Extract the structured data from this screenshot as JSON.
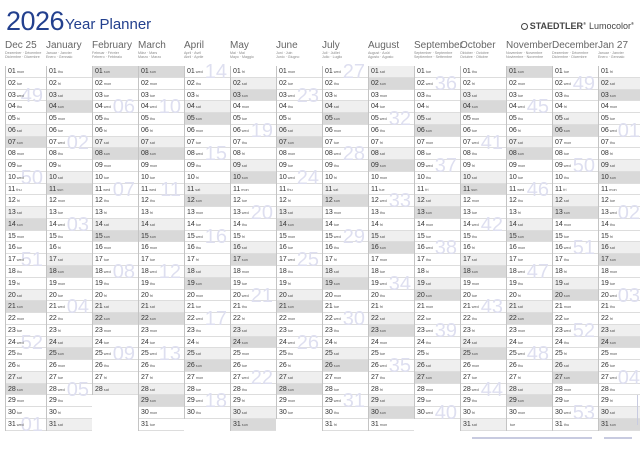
{
  "header": {
    "year": "2026",
    "title": "Year Planner",
    "brand": "STAEDTLER",
    "brand_mark": "®",
    "product": "Lumocolor",
    "product_mark": "®"
  },
  "colors": {
    "title": "#23408e",
    "saturday": "#efefef",
    "sunday": "#d9d9d9",
    "week_number": "#dedff0"
  },
  "months": [
    {
      "name": "Dec 25",
      "sub1": "Dezember · Décembre",
      "sub2": "Diciembre · Dicembre",
      "days": [
        "01 mon",
        "02 tue",
        "03 wed",
        "04 thu",
        "05 fri",
        "06 sat",
        "07 sun",
        "08 mon",
        "09 tue",
        "10 wed",
        "11 thu",
        "12 fri",
        "13 sat",
        "14 sun",
        "15 mon",
        "16 tue",
        "17 wed",
        "18 thu",
        "19 fri",
        "20 sat",
        "21 sun",
        "22 mon",
        "23 tue",
        "24 wed",
        "25 thu",
        "26 fri",
        "27 sat",
        "28 sun",
        "29 mon",
        "30 tue",
        "31 wed"
      ],
      "weeks": {
        "03": "49",
        "10": "50",
        "17": "51",
        "24": "52",
        "31": "01"
      }
    },
    {
      "name": "January",
      "sub1": "Januar · Janvier",
      "sub2": "Enero · Gennaio",
      "days": [
        "01 thu",
        "02 fri",
        "03 sat",
        "04 sun",
        "05 mon",
        "06 tue",
        "07 wed",
        "08 thu",
        "09 fri",
        "10 sat",
        "11 sun",
        "12 mon",
        "13 tue",
        "14 wed",
        "15 thu",
        "16 fri",
        "17 sat",
        "18 sun",
        "19 mon",
        "20 tue",
        "21 wed",
        "22 thu",
        "23 fri",
        "24 sat",
        "25 sun",
        "26 mon",
        "27 tue",
        "28 wed",
        "29 thu",
        "30 fri",
        "31 sat"
      ],
      "weeks": {
        "07": "02",
        "14": "03",
        "21": "04",
        "28": "05"
      }
    },
    {
      "name": "February",
      "sub1": "Februar · Février",
      "sub2": "Febrero · Febbraio",
      "days": [
        "01 sun",
        "02 mon",
        "03 tue",
        "04 wed",
        "05 thu",
        "06 fri",
        "07 sat",
        "08 sun",
        "09 mon",
        "10 tue",
        "11 wed",
        "12 thu",
        "13 fri",
        "14 sat",
        "15 sun",
        "16 mon",
        "17 tue",
        "18 wed",
        "19 thu",
        "20 fri",
        "21 sat",
        "22 sun",
        "23 mon",
        "24 tue",
        "25 wed",
        "26 thu",
        "27 fri",
        "28 sat"
      ],
      "weeks": {
        "04": "06",
        "11": "07",
        "18": "08",
        "25": "09"
      }
    },
    {
      "name": "March",
      "sub1": "März · Mars",
      "sub2": "Marzo · Marzo",
      "days": [
        "01 sun",
        "02 mon",
        "03 tue",
        "04 wed",
        "05 thu",
        "06 fri",
        "07 sat",
        "08 sun",
        "09 mon",
        "10 tue",
        "11 wed",
        "12 thu",
        "13 fri",
        "14 sat",
        "15 sun",
        "16 mon",
        "17 tue",
        "18 wed",
        "19 thu",
        "20 fri",
        "21 sat",
        "22 sun",
        "23 mon",
        "24 tue",
        "25 wed",
        "26 thu",
        "27 fri",
        "28 sat",
        "29 sun",
        "30 mon",
        "31 tue"
      ],
      "weeks": {
        "04": "10",
        "11": "11",
        "18": "12",
        "25": "13"
      }
    },
    {
      "name": "April",
      "sub1": "April · Avril",
      "sub2": "Abril · Aprile",
      "days": [
        "01 wed",
        "02 thu",
        "03 fri",
        "04 sat",
        "05 sun",
        "06 mon",
        "07 tue",
        "08 wed",
        "09 thu",
        "10 fri",
        "11 sat",
        "12 sun",
        "13 mon",
        "14 tue",
        "15 wed",
        "16 thu",
        "17 fri",
        "18 sat",
        "19 sun",
        "20 mon",
        "21 tue",
        "22 wed",
        "23 thu",
        "24 fri",
        "25 sat",
        "26 sun",
        "27 mon",
        "28 tue",
        "29 wed",
        "30 thu"
      ],
      "weeks": {
        "01": "14",
        "08": "15",
        "15": "16",
        "22": "17",
        "29": "18"
      }
    },
    {
      "name": "May",
      "sub1": "Mai · Mai",
      "sub2": "Mayo · Maggio",
      "days": [
        "01 fri",
        "02 sat",
        "03 sun",
        "04 mon",
        "05 tue",
        "06 wed",
        "07 thu",
        "08 fri",
        "09 sat",
        "10 sun",
        "11 mon",
        "12 tue",
        "13 wed",
        "14 thu",
        "15 fri",
        "16 sat",
        "17 sun",
        "18 mon",
        "19 tue",
        "20 wed",
        "21 thu",
        "22 fri",
        "23 sat",
        "24 sun",
        "25 mon",
        "26 tue",
        "27 wed",
        "28 thu",
        "29 fri",
        "30 sat",
        "31 sun"
      ],
      "weeks": {
        "06": "19",
        "13": "20",
        "20": "21",
        "27": "22"
      }
    },
    {
      "name": "June",
      "sub1": "Juni · Juin",
      "sub2": "Junio · Giugno",
      "days": [
        "01 mon",
        "02 tue",
        "03 wed",
        "04 thu",
        "05 fri",
        "06 sat",
        "07 sun",
        "08 mon",
        "09 tue",
        "10 wed",
        "11 thu",
        "12 fri",
        "13 sat",
        "14 sun",
        "15 mon",
        "16 tue",
        "17 wed",
        "18 thu",
        "19 fri",
        "20 sat",
        "21 sun",
        "22 mon",
        "23 tue",
        "24 wed",
        "25 thu",
        "26 fri",
        "27 sat",
        "28 sun",
        "29 mon",
        "30 tue"
      ],
      "weeks": {
        "03": "23",
        "10": "24",
        "17": "25",
        "24": "26"
      }
    },
    {
      "name": "July",
      "sub1": "Juli · Juillet",
      "sub2": "Julio · Luglio",
      "days": [
        "01 wed",
        "02 thu",
        "03 fri",
        "04 sat",
        "05 sun",
        "06 mon",
        "07 tue",
        "08 wed",
        "09 thu",
        "10 fri",
        "11 sat",
        "12 sun",
        "13 mon",
        "14 tue",
        "15 wed",
        "16 thu",
        "17 fri",
        "18 sat",
        "19 sun",
        "20 mon",
        "21 tue",
        "22 wed",
        "23 thu",
        "24 fri",
        "25 sat",
        "26 sun",
        "27 mon",
        "28 tue",
        "29 wed",
        "30 thu",
        "31 fri"
      ],
      "weeks": {
        "01": "27",
        "08": "28",
        "15": "29",
        "22": "30",
        "29": "31"
      }
    },
    {
      "name": "August",
      "sub1": "August · Août",
      "sub2": "Agosto · Agosto",
      "days": [
        "01 sat",
        "02 sun",
        "03 mon",
        "04 tue",
        "05 wed",
        "06 thu",
        "07 fri",
        "08 sat",
        "09 sun",
        "10 mon",
        "11 tue",
        "12 wed",
        "13 thu",
        "14 fri",
        "15 sat",
        "16 sun",
        "17 mon",
        "18 tue",
        "19 wed",
        "20 thu",
        "21 fri",
        "22 sat",
        "23 sun",
        "24 mon",
        "25 tue",
        "26 wed",
        "27 thu",
        "28 fri",
        "29 sat",
        "30 sun",
        "31 mon"
      ],
      "weeks": {
        "05": "32",
        "12": "33",
        "19": "34",
        "26": "35"
      }
    },
    {
      "name": "September",
      "sub1": "September · Septembre",
      "sub2": "Septiembre · Settembre",
      "days": [
        "01 tue",
        "02 wed",
        "03 thu",
        "04 fri",
        "05 sat",
        "06 sun",
        "07 mon",
        "08 tue",
        "09 wed",
        "10 thu",
        "11 fri",
        "12 sat",
        "13 sun",
        "14 mon",
        "15 tue",
        "16 wed",
        "17 thu",
        "18 fri",
        "19 sat",
        "20 sun",
        "21 mon",
        "22 tue",
        "23 wed",
        "24 thu",
        "25 fri",
        "26 sat",
        "27 sun",
        "28 mon",
        "29 tue",
        "30 wed"
      ],
      "weeks": {
        "02": "36",
        "09": "37",
        "16": "38",
        "23": "39",
        "30": "40"
      }
    },
    {
      "name": "October",
      "sub1": "Oktober · Octobre",
      "sub2": "Octubre · Ottobre",
      "days": [
        "01 thu",
        "02 fri",
        "03 sat",
        "04 sun",
        "05 mon",
        "06 tue",
        "07 wed",
        "08 thu",
        "09 fri",
        "10 sat",
        "11 sun",
        "12 mon",
        "13 tue",
        "14 wed",
        "15 thu",
        "16 fri",
        "17 sat",
        "18 sun",
        "19 mon",
        "20 tue",
        "21 wed",
        "22 thu",
        "23 fri",
        "24 sat",
        "25 sun",
        "26 mon",
        "27 tue",
        "28 wed",
        "29 thu",
        "30 fri",
        "31 sat"
      ],
      "weeks": {
        "07": "41",
        "14": "42",
        "21": "43",
        "28": "44"
      }
    },
    {
      "name": "November",
      "sub1": "November · Novembre",
      "sub2": "Noviembre · Novembre",
      "days": [
        "01 sun",
        "02 mon",
        "03 tue",
        "04 wed",
        "05 thu",
        "06 fri",
        "07 sat",
        "08 sun",
        "09 mon",
        "10 tue",
        "11 wed",
        "12 thu",
        "13 fri",
        "14 sat",
        "15 sun",
        "16 mon",
        "17 tue",
        "18 wed",
        "19 thu",
        "20 fri",
        "21 sat",
        "22 sun",
        "23 mon",
        "24 tue",
        "25 wed",
        "26 thu",
        "27 fri",
        "28 sat",
        "29 sun",
        "30 mon",
        " tue"
      ],
      "weeks": {
        "04": "45",
        "11": "46",
        "18": "47",
        "25": "48"
      }
    },
    {
      "name": "December",
      "sub1": "Dezember · Décembre",
      "sub2": "Diciembre · Dicembre",
      "days": [
        "01 tue",
        "02 wed",
        "03 thu",
        "04 fri",
        "05 sat",
        "06 sun",
        "07 mon",
        "08 tue",
        "09 wed",
        "10 thu",
        "11 fri",
        "12 sat",
        "13 sun",
        "14 mon",
        "15 tue",
        "16 wed",
        "17 thu",
        "18 fri",
        "19 sat",
        "20 sun",
        "21 mon",
        "22 tue",
        "23 wed",
        "24 thu",
        "25 fri",
        "26 sat",
        "27 sun",
        "28 mon",
        "29 tue",
        "30 wed",
        "31 thu"
      ],
      "weeks": {
        "02": "49",
        "09": "50",
        "16": "51",
        "23": "52",
        "30": "53"
      }
    },
    {
      "name": "Jan 27",
      "sub1": "Januar · Janvier",
      "sub2": "Enero · Gennaio",
      "days": [
        "01 fri",
        "02 sat",
        "03 sun",
        "04 mon",
        "05 tue",
        "06 wed",
        "07 thu",
        "08 fri",
        "09 sat",
        "10 sun",
        "11 mon",
        "12 tue",
        "13 wed",
        "14 thu",
        "15 fri",
        "16 sat",
        "17 sun",
        "18 mon",
        "19 tue",
        "20 wed",
        "21 thu",
        "22 fri",
        "23 sat",
        "24 sun",
        "25 mon",
        "26 tue",
        "27 wed",
        "28 thu",
        "29 fri",
        "30 sat",
        "31 sun"
      ],
      "weeks": {
        "06": "01",
        "13": "02",
        "20": "03",
        "27": "04"
      }
    }
  ]
}
